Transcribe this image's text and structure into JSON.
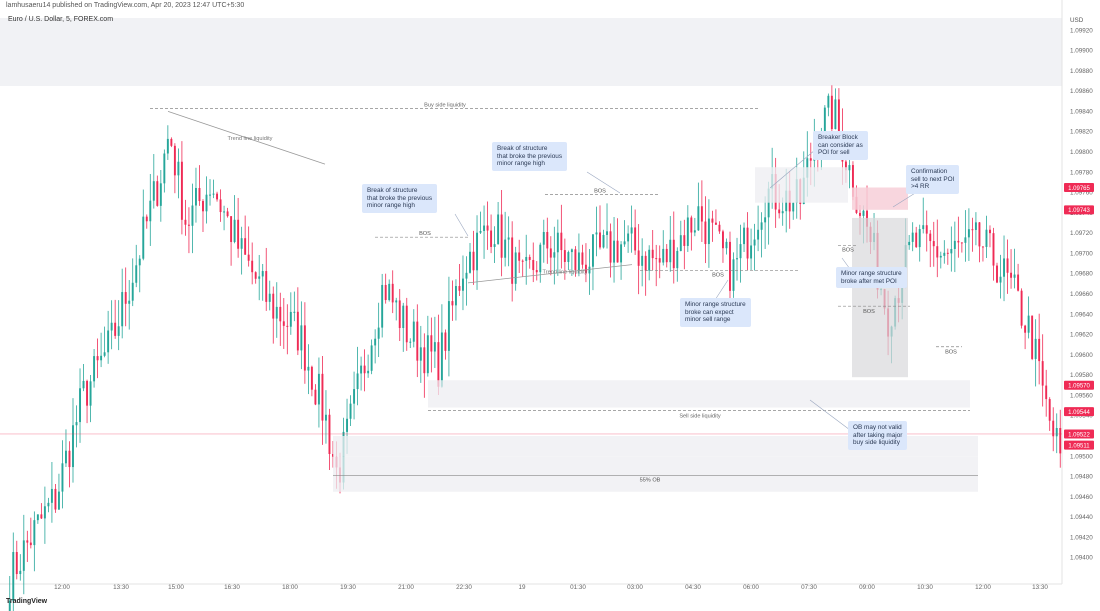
{
  "header": {
    "publisher": "lamhusaeru14 published on TradingView.com, Apr 20, 2023 12:47 UTC+5:30",
    "symbol": "Euro / U.S. Dollar, 5, FOREX.com",
    "currency": "USD",
    "watermark": "TradingView"
  },
  "colors": {
    "up": "#26a69a",
    "down": "#ef2b55",
    "zone": "#eeeef1",
    "supply_zone": "#f7cfd8",
    "callout_bg": "#dbe7fb",
    "dashed": "#888888"
  },
  "chart_data": {
    "type": "candlestick",
    "timeframe": "5",
    "x_ticks": [
      "12:00",
      "13:30",
      "15:00",
      "16:30",
      "18:00",
      "19:30",
      "21:00",
      "22:30",
      "19",
      "01:30",
      "03:00",
      "04:30",
      "06:00",
      "07:30",
      "09:00",
      "10:30",
      "12:00",
      "13:30"
    ],
    "y_ticks": [
      1.0992,
      1.099,
      1.0988,
      1.0986,
      1.0984,
      1.0982,
      1.098,
      1.0978,
      1.0976,
      1.0974,
      1.0972,
      1.097,
      1.0968,
      1.0966,
      1.0964,
      1.0962,
      1.096,
      1.0958,
      1.0956,
      1.0954,
      1.0952,
      1.095,
      1.0948,
      1.0946,
      1.0944,
      1.0942,
      1.094
    ],
    "ylim": [
      1.0938,
      1.0994
    ],
    "price_labels": [
      {
        "text": "1.09765",
        "price": 1.09765,
        "color": "#ef2b55"
      },
      {
        "text": "1.09743",
        "price": 1.09743,
        "color": "#ef2b55"
      },
      {
        "text": "1.09570",
        "price": 1.0957,
        "color": "#ef2b55"
      },
      {
        "text": "1.09544",
        "price": 1.09544,
        "color": "#ef2b55"
      },
      {
        "text": "1.09522",
        "price": 1.09522,
        "color": "#ef2b55"
      },
      {
        "text": "1.09511",
        "price": 1.09511,
        "color": "#ef2b55"
      }
    ],
    "close_line": 1.09522,
    "candle_count": 300,
    "anchors": [
      [
        0,
        1.0938
      ],
      [
        10,
        1.0942
      ],
      [
        22,
        1.0946
      ],
      [
        35,
        1.0956
      ],
      [
        48,
        1.0961
      ],
      [
        60,
        1.0969
      ],
      [
        72,
        1.0978
      ],
      [
        76,
        1.0982
      ],
      [
        84,
        1.0973
      ],
      [
        96,
        1.0977
      ],
      [
        110,
        1.097
      ],
      [
        124,
        1.0965
      ],
      [
        138,
        1.0962
      ],
      [
        150,
        1.0954
      ],
      [
        156,
        1.0948
      ],
      [
        164,
        1.0955
      ],
      [
        178,
        1.0967
      ],
      [
        190,
        1.0962
      ],
      [
        204,
        1.0959
      ],
      [
        216,
        1.0969
      ],
      [
        230,
        1.0973
      ],
      [
        244,
        1.0967
      ],
      [
        256,
        1.0971
      ],
      [
        270,
        1.0969
      ],
      [
        292,
        1.0971
      ],
      [
        310,
        1.0969
      ],
      [
        328,
        1.0974
      ],
      [
        344,
        1.0968
      ],
      [
        360,
        1.0976
      ],
      [
        376,
        1.0975
      ],
      [
        384,
        1.0982
      ],
      [
        392,
        1.0984
      ],
      [
        400,
        1.0978
      ],
      [
        410,
        1.0971
      ],
      [
        418,
        1.0964
      ],
      [
        430,
        1.0971
      ],
      [
        446,
        1.097
      ],
      [
        462,
        1.0971
      ],
      [
        470,
        1.0969
      ],
      [
        478,
        1.0966
      ],
      [
        486,
        1.0962
      ],
      [
        494,
        1.0954
      ],
      [
        500,
        1.095
      ]
    ],
    "annotations": [
      "Buy side liquidity",
      "Trend line liquidity",
      "Break of structure\nthat broke the previous\nminor range high",
      "BOS",
      "Trend line liquidity",
      "Break of structure\nthat broke the previous\nminor range high",
      "BOS",
      "Breaker Block\ncan consider as\nPOI for sell",
      "Confirmation\nsell to next POI\n>4 RR",
      "BOS",
      "Minor range structure\nbroke after met POI",
      "Minor range structure\nbroke can expect\nminor sell range",
      "BOS",
      "BOS",
      "BOS",
      "Sell side liquidity",
      "OB may not valid\nafter taking major\nbuy side liquidity",
      "55% OB"
    ]
  }
}
